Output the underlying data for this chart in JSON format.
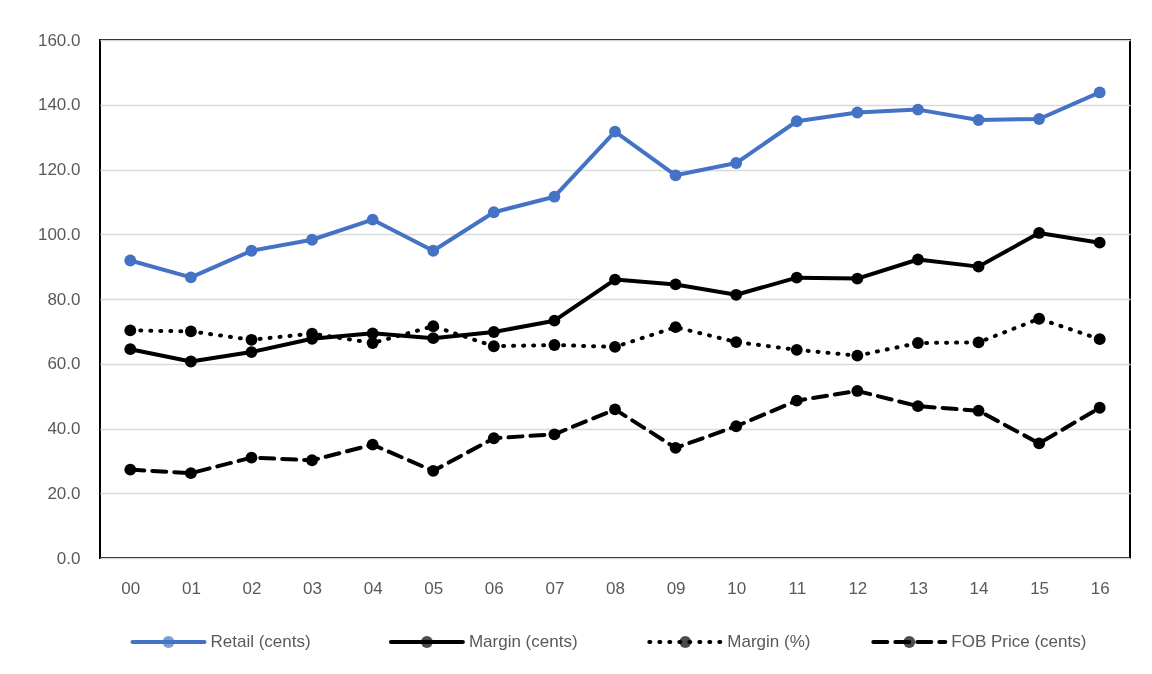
{
  "chart_data": {
    "type": "line",
    "categories": [
      "00",
      "01",
      "02",
      "03",
      "04",
      "05",
      "06",
      "07",
      "08",
      "09",
      "10",
      "11",
      "12",
      "13",
      "14",
      "15",
      "16"
    ],
    "series": [
      {
        "name": "Retail (cents)",
        "color": "#4472c4",
        "line_style": "solid",
        "values": [
          91.9,
          86.7,
          94.9,
          98.3,
          104.5,
          94.9,
          106.8,
          111.6,
          131.7,
          118.2,
          122.0,
          134.9,
          137.6,
          138.5,
          135.3,
          135.6,
          143.8
        ]
      },
      {
        "name": "Margin (cents)",
        "color": "#000000",
        "line_style": "solid",
        "values": [
          64.5,
          60.7,
          63.6,
          67.7,
          69.4,
          67.9,
          69.8,
          73.3,
          86.0,
          84.5,
          81.3,
          86.6,
          86.3,
          92.2,
          90.0,
          100.4,
          97.4
        ]
      },
      {
        "name": "Margin (%)",
        "color": "#000000",
        "line_style": "dotted",
        "values": [
          70.3,
          70.0,
          67.4,
          69.3,
          66.4,
          71.6,
          65.4,
          65.8,
          65.2,
          71.3,
          66.7,
          64.3,
          62.5,
          66.4,
          66.6,
          73.9,
          67.6
        ]
      },
      {
        "name": "FOB Price (cents)",
        "color": "#000000",
        "line_style": "dashed",
        "values": [
          27.3,
          26.2,
          31.0,
          30.2,
          35.0,
          26.9,
          37.0,
          38.2,
          45.9,
          34.0,
          40.7,
          48.6,
          51.6,
          46.9,
          45.5,
          35.4,
          46.4
        ]
      }
    ],
    "ylim": [
      0,
      160
    ],
    "yticks": [
      {
        "value": 0,
        "label": "0.0"
      },
      {
        "value": 20,
        "label": "20.0"
      },
      {
        "value": 40,
        "label": "40.0"
      },
      {
        "value": 60,
        "label": "60.0"
      },
      {
        "value": 80,
        "label": "80.0"
      },
      {
        "value": 100,
        "label": "100.0"
      },
      {
        "value": 120,
        "label": "120.0"
      },
      {
        "value": 140,
        "label": "140.0"
      },
      {
        "value": 160,
        "label": "160.0"
      }
    ],
    "grid": "y",
    "legend": "bottom",
    "marker": "circle"
  }
}
